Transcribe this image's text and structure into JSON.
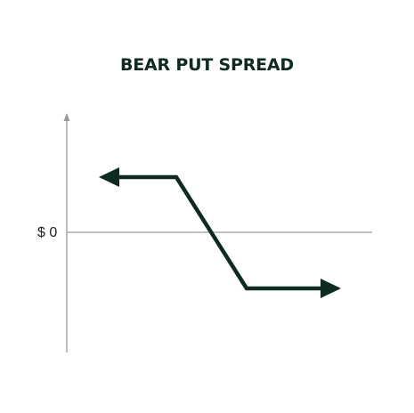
{
  "diagram": {
    "title": "BEAR PUT SPREAD",
    "zero_label": "$ 0"
  },
  "colors": {
    "payoff_line": "#0f2a22",
    "axis": "#9a9a9a",
    "title_text": "#0f2a22",
    "label_text": "#222222"
  }
}
